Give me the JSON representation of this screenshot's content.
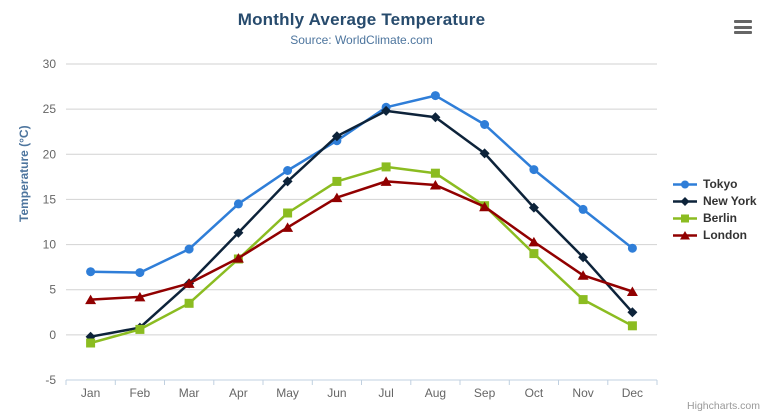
{
  "header": {
    "title": "Monthly Average Temperature",
    "subtitle": "Source: WorldClimate.com"
  },
  "menu": {
    "icon": "hamburger-icon"
  },
  "credit": {
    "label": "Highcharts.com"
  },
  "colors": {
    "title": "#274b6d",
    "subtitle": "#4d759e",
    "axis_title": "#4d759e",
    "axis_label": "#666666",
    "gridline": "#d2d2d2",
    "axis_line": "#c0d0e0",
    "legend_text": "#333333",
    "credit": "#999999"
  },
  "chart_data": {
    "type": "line",
    "title": "Monthly Average Temperature",
    "subtitle": "Source: WorldClimate.com",
    "xlabel": "",
    "ylabel": "Temperature (°C)",
    "categories": [
      "Jan",
      "Feb",
      "Mar",
      "Apr",
      "May",
      "Jun",
      "Jul",
      "Aug",
      "Sep",
      "Oct",
      "Nov",
      "Dec"
    ],
    "ylim": [
      -5,
      30
    ],
    "ytick_interval": 5,
    "yticks": [
      -5,
      0,
      5,
      10,
      15,
      20,
      25,
      30
    ],
    "grid": "horizontal-only",
    "legend_position": "right",
    "series": [
      {
        "name": "Tokyo",
        "color": "#2f7ed8",
        "marker": "circle",
        "values": [
          7.0,
          6.9,
          9.5,
          14.5,
          18.2,
          21.5,
          25.2,
          26.5,
          23.3,
          18.3,
          13.9,
          9.6
        ]
      },
      {
        "name": "New York",
        "color": "#0d233a",
        "marker": "diamond",
        "values": [
          -0.2,
          0.8,
          5.7,
          11.3,
          17.0,
          22.0,
          24.8,
          24.1,
          20.1,
          14.1,
          8.6,
          2.5
        ]
      },
      {
        "name": "Berlin",
        "color": "#8bbc21",
        "marker": "square",
        "values": [
          -0.9,
          0.6,
          3.5,
          8.4,
          13.5,
          17.0,
          18.6,
          17.9,
          14.3,
          9.0,
          3.9,
          1.0
        ]
      },
      {
        "name": "London",
        "color": "#910000",
        "marker": "triangle",
        "values": [
          3.9,
          4.2,
          5.7,
          8.5,
          11.9,
          15.2,
          17.0,
          16.6,
          14.2,
          10.3,
          6.6,
          4.8
        ]
      }
    ]
  }
}
